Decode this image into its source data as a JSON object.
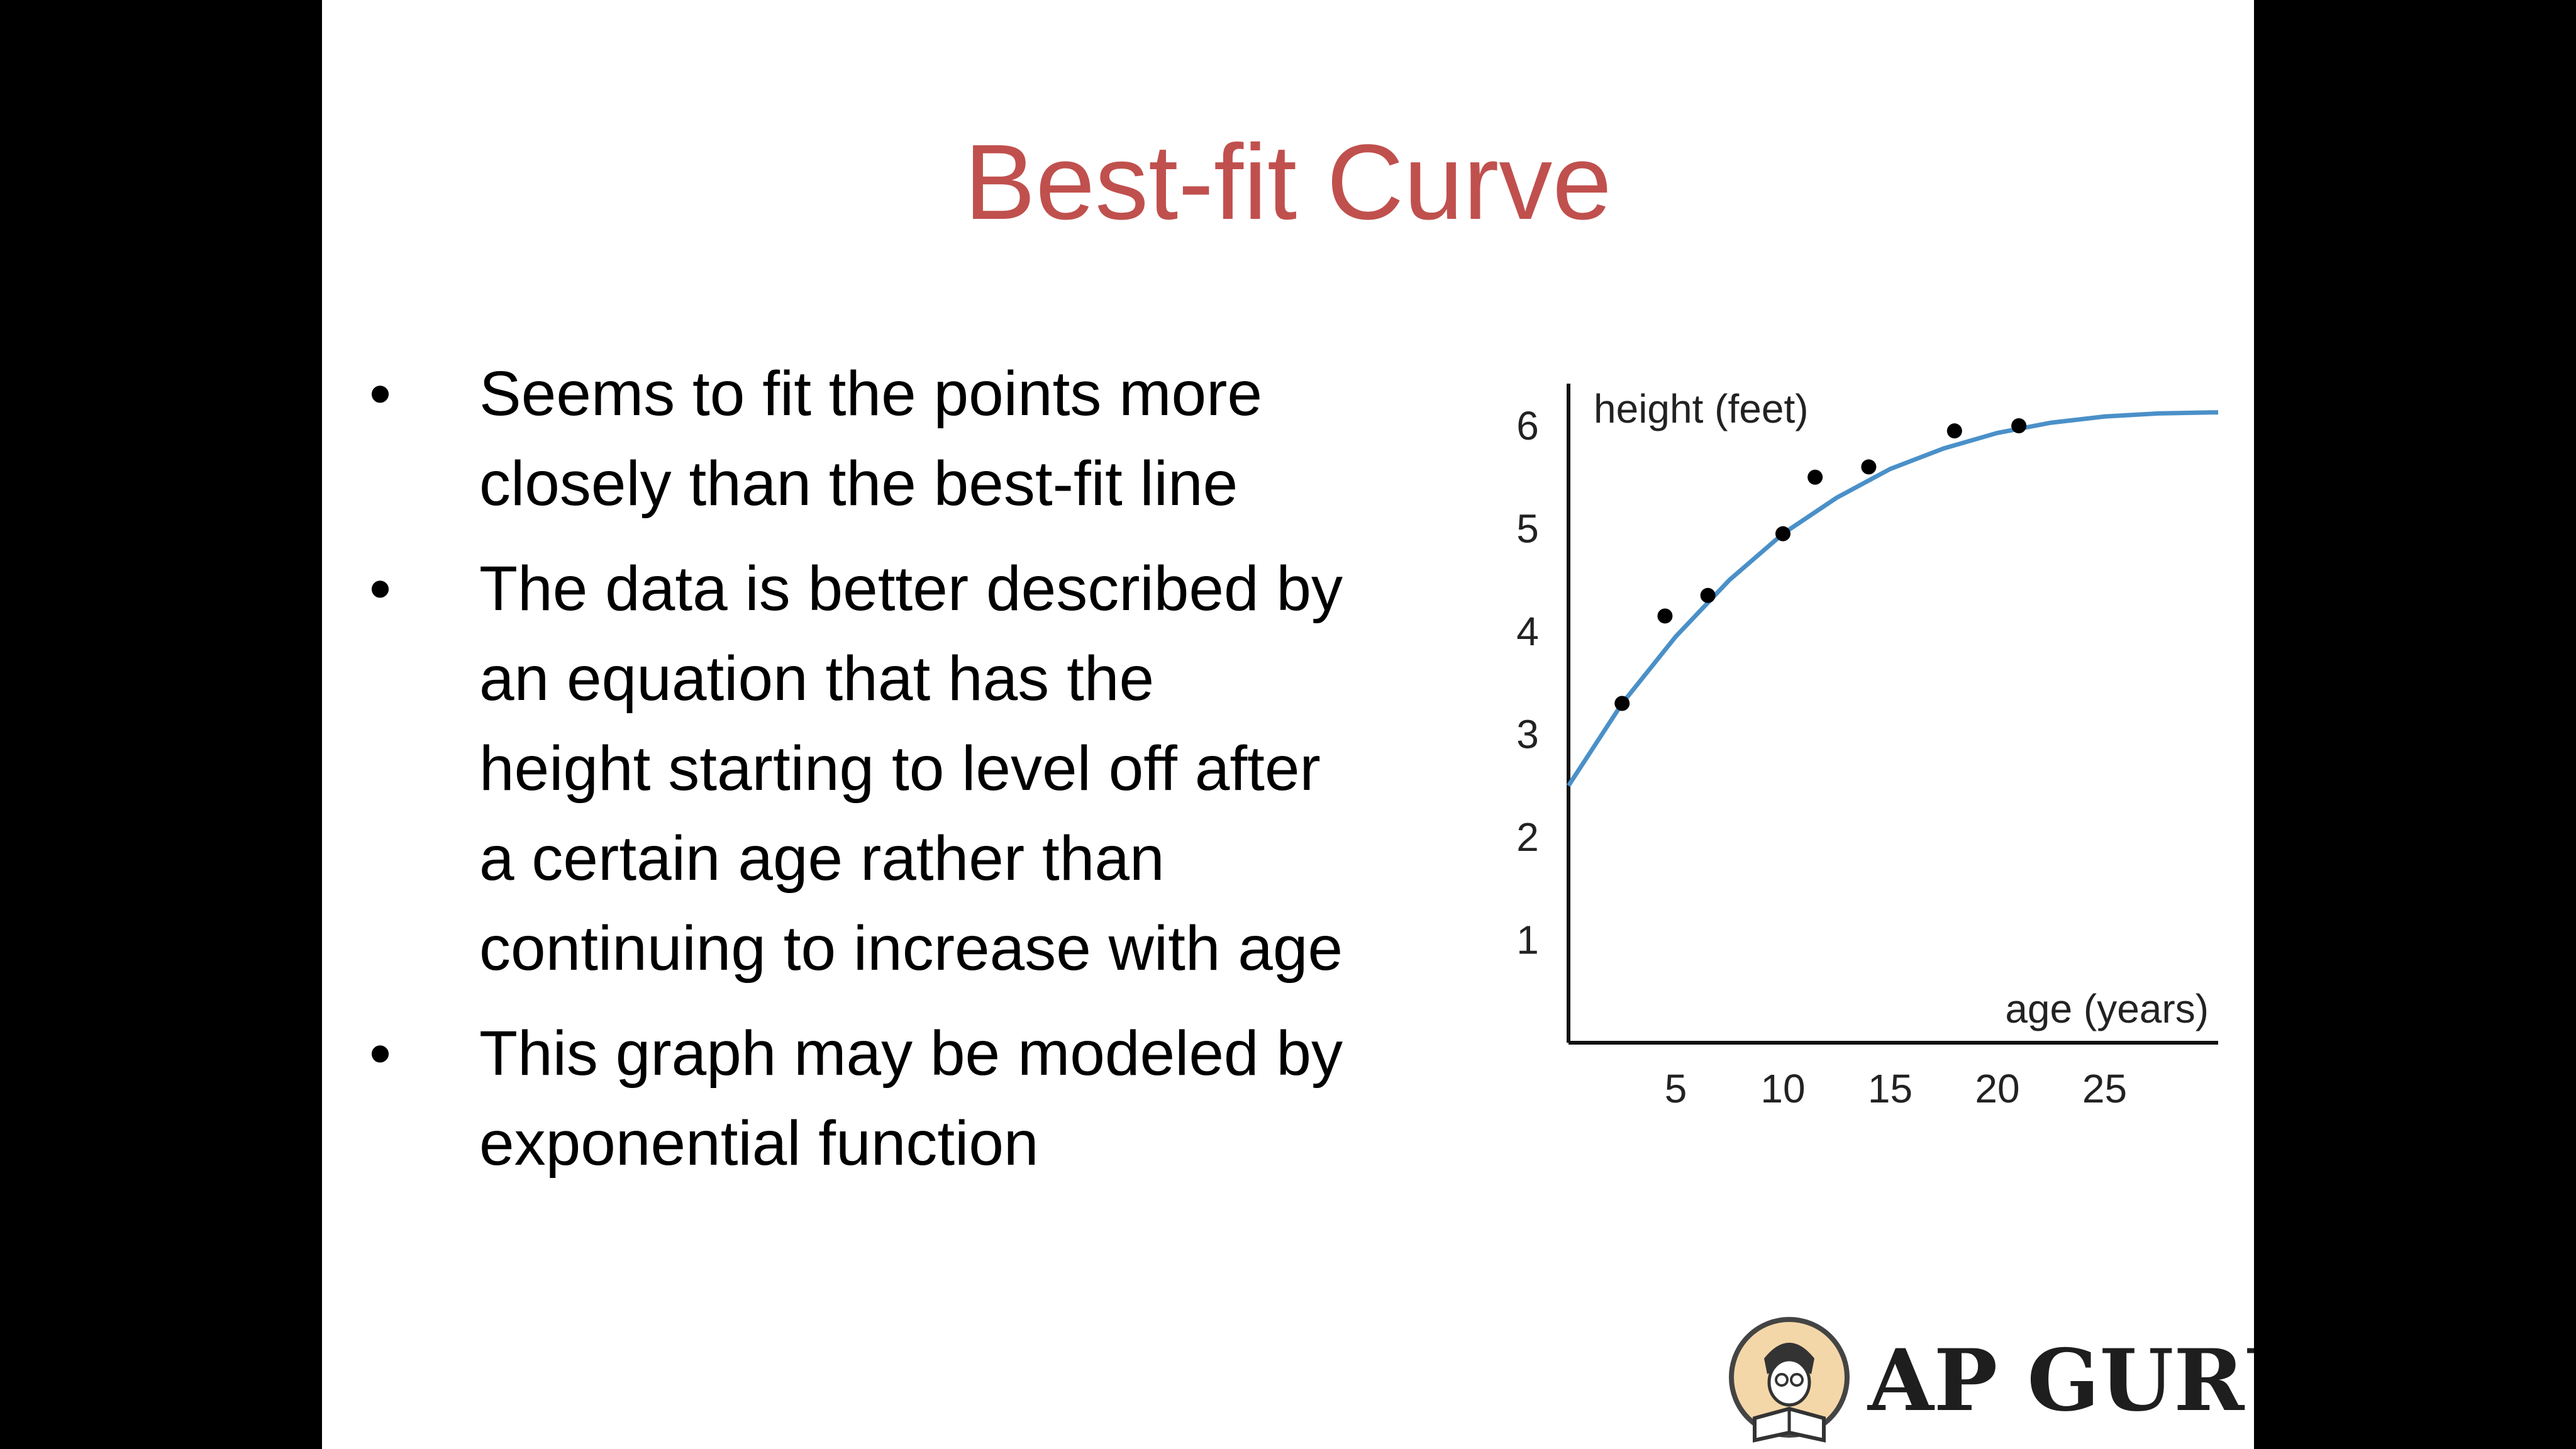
{
  "slide": {
    "title": "Best-fit Curve",
    "bullets": [
      {
        "lines": [
          "Seems to fit the points more",
          "closely than the best-fit line"
        ]
      },
      {
        "lines": [
          "The data is better described by",
          "an equation that has the",
          "height starting to level off after",
          "a certain age rather than",
          "continuing to increase with age"
        ]
      },
      {
        "lines": [
          "This graph may be modeled by",
          "exponential function"
        ]
      }
    ],
    "bullet_symbol": "•",
    "colors": {
      "title": "#c0504d",
      "curve": "#4a90c8",
      "points": "#000000",
      "axis": "#111111"
    }
  },
  "chart_data": {
    "type": "scatter",
    "title": "",
    "xlabel": "age (years)",
    "ylabel": "height (feet)",
    "xlim": [
      0,
      31
    ],
    "ylim": [
      0,
      6.6
    ],
    "xticks": [
      5,
      10,
      15,
      20,
      25
    ],
    "yticks": [
      1,
      2,
      3,
      4,
      5,
      6
    ],
    "grid": false,
    "legend": "none",
    "points": [
      {
        "x": 2.5,
        "y": 3.3
      },
      {
        "x": 4.5,
        "y": 4.15
      },
      {
        "x": 6.5,
        "y": 4.35
      },
      {
        "x": 10,
        "y": 4.95
      },
      {
        "x": 11.5,
        "y": 5.5
      },
      {
        "x": 14,
        "y": 5.6
      },
      {
        "x": 18,
        "y": 5.95
      },
      {
        "x": 21,
        "y": 6.0
      }
    ],
    "fit_curve": {
      "model": "exponential",
      "x": [
        0,
        2.5,
        5,
        7.5,
        10,
        12.5,
        15,
        17.5,
        20,
        22.5,
        25,
        27.5,
        30,
        31
      ],
      "y": [
        2.5,
        3.3,
        3.95,
        4.5,
        4.95,
        5.3,
        5.58,
        5.78,
        5.93,
        6.03,
        6.09,
        6.12,
        6.13,
        6.13
      ]
    }
  },
  "logo": {
    "text": "AP GURU",
    "icon": "reading-student-icon"
  }
}
